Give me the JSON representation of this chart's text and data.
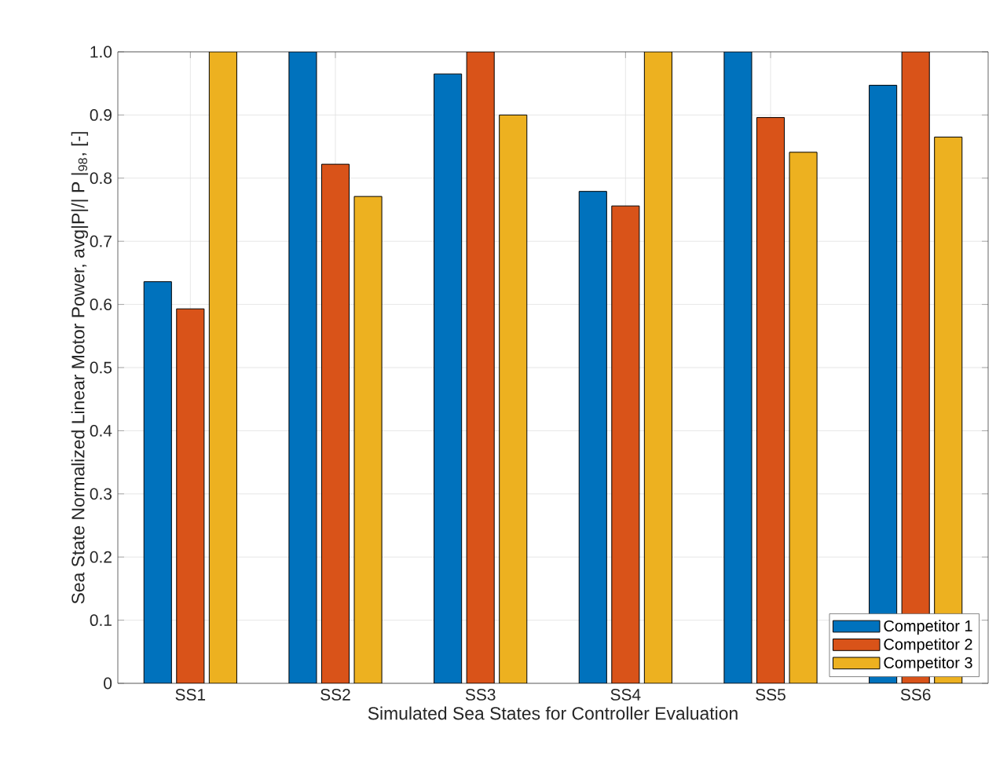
{
  "chart_data": {
    "type": "bar",
    "xlabel": "Simulated Sea States for Controller Evaluation",
    "ylabel": "Sea State Normalized Linear Motor Power, avg|P|/| P |$_{98}$, [-]",
    "categories": [
      "SS1",
      "SS2",
      "SS3",
      "SS4",
      "SS5",
      "SS6"
    ],
    "series": [
      {
        "name": "Competitor 1",
        "color": "#0072bd",
        "values": [
          0.636,
          1.0,
          0.965,
          0.779,
          1.0,
          0.947
        ]
      },
      {
        "name": "Competitor 2",
        "color": "#d95319",
        "values": [
          0.593,
          0.822,
          1.0,
          0.756,
          0.896,
          1.0
        ]
      },
      {
        "name": "Competitor 3",
        "color": "#edb120",
        "values": [
          1.0,
          0.771,
          0.9,
          1.0,
          0.841,
          0.865
        ]
      }
    ],
    "ylim": [
      0,
      1
    ],
    "yticks": [
      0,
      0.1,
      0.2,
      0.3,
      0.4,
      0.5,
      0.6,
      0.7,
      0.8,
      0.9,
      {
        "value": 1,
        "label": "1.0"
      }
    ],
    "grid": true,
    "legend": "bottom right"
  }
}
